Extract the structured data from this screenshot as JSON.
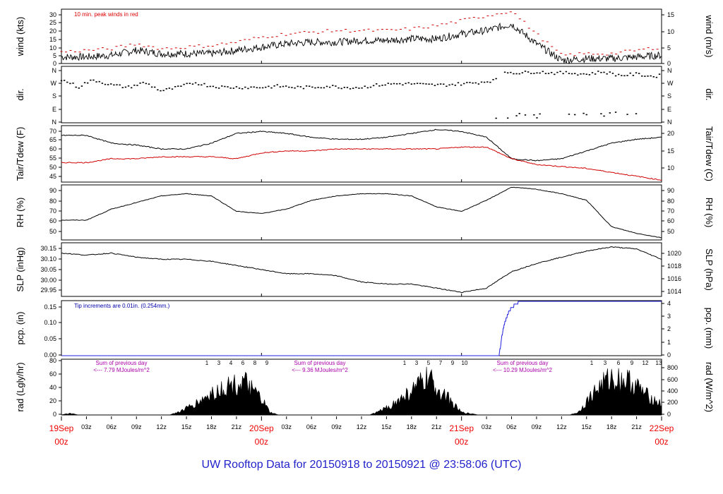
{
  "footer": "UW Rooftop Data for 20150918  to  20150921 @ 23:58:06  (UTC)",
  "chart_data": [
    {
      "type": "line",
      "id": "wind",
      "ylabel": "wind (kts)",
      "ylabel_right": "wind (m/s)",
      "ylim": [
        0,
        33
      ],
      "left_ticks": [
        "30",
        "25",
        "20",
        "15",
        "10",
        "5",
        "0"
      ],
      "right_ticks": [
        "15",
        "10",
        "5",
        "0"
      ],
      "annotation": "10 min. peak winds in red",
      "series": [
        {
          "color": "#000000",
          "x": [
            0,
            3,
            6,
            9,
            12,
            15,
            18,
            21,
            24,
            27,
            30,
            33,
            36,
            39,
            42,
            45,
            48,
            51,
            54,
            57,
            60,
            63,
            66,
            69,
            72
          ],
          "values": [
            4,
            4,
            5,
            8,
            6,
            6,
            6,
            8,
            10,
            12,
            13,
            13,
            14,
            14,
            15,
            15,
            18,
            20,
            24,
            12,
            2,
            3,
            3,
            4,
            5
          ]
        },
        {
          "color": "#d00000",
          "x": [
            0,
            3,
            6,
            9,
            12,
            15,
            18,
            21,
            24,
            27,
            30,
            33,
            36,
            39,
            42,
            45,
            48,
            51,
            54,
            57,
            60,
            63,
            66,
            69,
            72
          ],
          "values": [
            7,
            8,
            9,
            12,
            9,
            10,
            11,
            13,
            16,
            18,
            19,
            20,
            20,
            20,
            21,
            23,
            26,
            29,
            32,
            18,
            5,
            6,
            6,
            8,
            10
          ]
        }
      ]
    },
    {
      "type": "scatter",
      "id": "dir",
      "ylabel": "dir.",
      "ylabel_right": "dir.",
      "left_ticks": [
        "N",
        "W",
        "S",
        "E",
        "N"
      ],
      "right_ticks": [
        "N",
        "W",
        "S",
        "E",
        "N"
      ],
      "series": [
        {
          "color": "#000000",
          "x": [
            0,
            1,
            2,
            3,
            4,
            5,
            6,
            8,
            10,
            12,
            14,
            16,
            18,
            20,
            22,
            24,
            26,
            28,
            30,
            32,
            34,
            36,
            38,
            40,
            42,
            44,
            46,
            48,
            50,
            51,
            52,
            53,
            53,
            55,
            57,
            59,
            61,
            63,
            65,
            67,
            69,
            71,
            72
          ],
          "values": [
            3.2,
            3.0,
            2.6,
            3.0,
            3.2,
            3.0,
            2.8,
            2.6,
            3.0,
            2.3,
            2.6,
            3.0,
            2.7,
            2.6,
            2.6,
            2.6,
            2.7,
            2.6,
            2.6,
            2.7,
            2.6,
            2.6,
            2.8,
            2.9,
            2.9,
            2.8,
            2.8,
            2.9,
            3.0,
            3.1,
            3.2,
            3.3,
            3.9,
            3.8,
            3.9,
            3.8,
            3.8,
            3.7,
            3.9,
            3.6,
            3.7,
            3.5,
            3.6
          ]
        },
        {
          "color": "#000000",
          "x": [
            53,
            55,
            57,
            60,
            64,
            70
          ],
          "values": [
            0.1,
            0.4,
            0.2,
            0.5,
            0.3,
            0.5
          ]
        }
      ]
    },
    {
      "type": "line",
      "id": "temp",
      "ylabel": "Tair/Tdew (F)",
      "ylabel_right": "Tair/Tdew (C)",
      "ylim": [
        43,
        72
      ],
      "left_ticks": [
        "70",
        "65",
        "60",
        "55",
        "50",
        "45"
      ],
      "right_ticks": [
        "20",
        "15",
        "10"
      ],
      "series": [
        {
          "color": "#000000",
          "x": [
            0,
            3,
            6,
            9,
            12,
            15,
            18,
            21,
            24,
            27,
            30,
            33,
            36,
            39,
            42,
            45,
            48,
            51,
            54,
            57,
            60,
            63,
            66,
            69,
            72
          ],
          "values": [
            67,
            67,
            63,
            62,
            60,
            60,
            63,
            68,
            69,
            68,
            66,
            65,
            65,
            66,
            68,
            70,
            69,
            66,
            55,
            54,
            55,
            59,
            63,
            65,
            66
          ]
        },
        {
          "color": "#d00000",
          "x": [
            0,
            3,
            6,
            9,
            12,
            15,
            18,
            21,
            24,
            27,
            30,
            33,
            36,
            39,
            42,
            45,
            48,
            51,
            54,
            57,
            60,
            63,
            66,
            69,
            72
          ],
          "values": [
            53,
            53,
            55,
            55,
            56,
            56,
            56,
            55,
            58,
            59,
            59,
            60,
            60,
            60,
            60,
            60,
            61,
            61,
            55,
            52,
            51,
            50,
            48,
            46,
            44
          ]
        }
      ]
    },
    {
      "type": "line",
      "id": "rh",
      "ylabel": "RH (%)",
      "ylabel_right": "RH (%)",
      "ylim": [
        44,
        94
      ],
      "left_ticks": [
        "90",
        "80",
        "70",
        "60",
        "50"
      ],
      "right_ticks": [
        "90",
        "80",
        "70",
        "60",
        "50"
      ],
      "series": [
        {
          "color": "#000000",
          "x": [
            0,
            3,
            6,
            9,
            12,
            15,
            18,
            21,
            24,
            27,
            30,
            33,
            36,
            39,
            42,
            45,
            48,
            51,
            54,
            57,
            60,
            63,
            66,
            69,
            72
          ],
          "values": [
            62,
            62,
            72,
            78,
            84,
            86,
            84,
            70,
            68,
            72,
            80,
            84,
            86,
            86,
            84,
            74,
            70,
            80,
            92,
            90,
            86,
            80,
            56,
            50,
            46
          ]
        }
      ]
    },
    {
      "type": "line",
      "id": "slp",
      "ylabel": "SLP (inHg)",
      "ylabel_right": "SLP (hPa)",
      "ylim": [
        29.91,
        30.17
      ],
      "left_ticks": [
        "30.15",
        "30.10",
        "30.05",
        "30.00",
        "29.95"
      ],
      "right_ticks": [
        "1020",
        "1018",
        "1016",
        "1014"
      ],
      "series": [
        {
          "color": "#000000",
          "x": [
            0,
            3,
            6,
            9,
            12,
            15,
            18,
            21,
            24,
            27,
            30,
            33,
            36,
            39,
            42,
            45,
            48,
            51,
            54,
            57,
            60,
            63,
            66,
            69,
            72
          ],
          "values": [
            30.12,
            30.11,
            30.12,
            30.1,
            30.09,
            30.09,
            30.08,
            30.06,
            30.04,
            30.02,
            30.02,
            30.01,
            29.98,
            29.97,
            29.97,
            29.95,
            29.93,
            29.95,
            30.03,
            30.07,
            30.1,
            30.13,
            30.15,
            30.14,
            30.09
          ]
        }
      ]
    },
    {
      "type": "line",
      "id": "pcp",
      "ylabel": "pcp. (in)",
      "ylabel_right": "pcp. (mm)",
      "ylim": [
        0,
        0.16
      ],
      "left_ticks": [
        "0.15",
        "0.10",
        "0.05",
        "0.00"
      ],
      "right_ticks": [
        "4",
        "3",
        "2",
        "1",
        "0"
      ],
      "annotation": "Tip increments are 0.01in. (0.254mm.)",
      "series": [
        {
          "color": "#2222dd",
          "x": [
            0,
            52.5,
            52.8,
            53.1,
            53.4,
            53.7,
            54.0,
            54.5,
            55,
            72
          ],
          "values": [
            0,
            0,
            0.05,
            0.09,
            0.11,
            0.13,
            0.14,
            0.15,
            0.16,
            0.16
          ]
        }
      ]
    },
    {
      "type": "area",
      "id": "rad",
      "ylabel": "rad (Lgly/hr)",
      "ylabel_right": "rad (W/m^2)",
      "ylim": [
        0,
        80
      ],
      "left_ticks": [
        "80",
        "60",
        "40",
        "20",
        "0"
      ],
      "right_ticks": [
        "800",
        "600",
        "400",
        "200",
        "0"
      ],
      "daily_totals": [
        {
          "line1": "Sum of previous day",
          "line2": "<--- 7.79 MJoules/m^2"
        },
        {
          "line1": "Sum of previous day",
          "line2": "<--- 9.36 MJoules/m^2"
        },
        {
          "line1": "Sum of previous day",
          "line2": "<--- 10.29 MJoules/m^2"
        }
      ],
      "hour_marks": [
        [
          "1",
          "3",
          "4",
          "6",
          "8",
          "9"
        ],
        [
          "1",
          "3",
          "5",
          "7",
          "9",
          "10"
        ],
        [
          "1",
          "3",
          "6",
          "9",
          "12",
          "13"
        ]
      ],
      "series": [
        {
          "color": "#000000",
          "x": [
            0,
            1,
            2,
            13,
            14,
            16,
            18,
            20,
            22,
            23,
            24,
            25,
            26,
            37,
            38,
            40,
            42,
            44,
            45,
            46,
            47,
            48,
            50,
            61,
            62,
            64,
            65,
            66,
            68,
            69,
            70,
            72
          ],
          "values": [
            0,
            3,
            0,
            0,
            5,
            20,
            40,
            55,
            60,
            45,
            30,
            5,
            0,
            0,
            6,
            22,
            45,
            70,
            50,
            40,
            20,
            5,
            0,
            0,
            5,
            45,
            60,
            70,
            65,
            55,
            40,
            20
          ]
        }
      ]
    }
  ],
  "x_axis": {
    "hour_ticks": [
      "03z",
      "06z",
      "09z",
      "12z",
      "15z",
      "18z",
      "21z"
    ],
    "days": [
      {
        "date": "19Sep",
        "hour": "00z"
      },
      {
        "date": "20Sep",
        "hour": "00z"
      },
      {
        "date": "21Sep",
        "hour": "00z"
      },
      {
        "date": "22Sep",
        "hour": "00z"
      }
    ]
  }
}
